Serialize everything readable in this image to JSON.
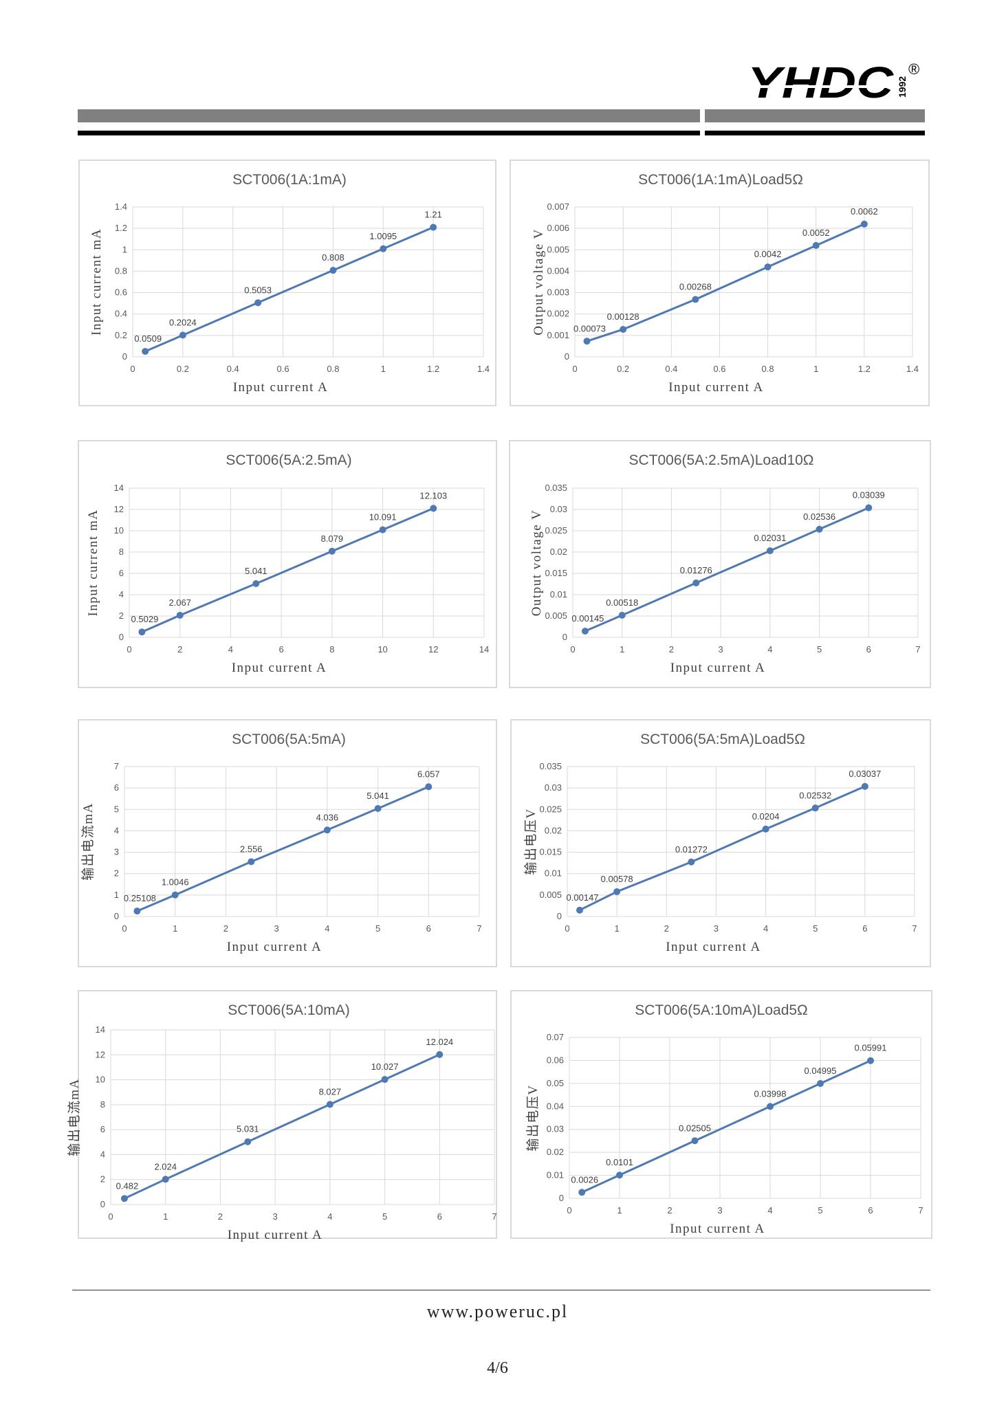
{
  "header": {
    "brand": "YHDC",
    "year": "1992",
    "registered": "®"
  },
  "footer": {
    "url": "www.poweruc.pl",
    "page": "4/6"
  },
  "colors": {
    "series": "#4f79b3",
    "grid": "#d9d9d9",
    "rule": "#808080"
  },
  "chart_data": [
    {
      "type": "line",
      "title": "SCT006(1A:1mA)",
      "xlabel": "Input current A",
      "ylabel": "Input current mA",
      "xlim": [
        0,
        1.4
      ],
      "xticks": [
        "0",
        "0.2",
        "0.4",
        "0.6",
        "0.8",
        "1",
        "1.2",
        "1.4"
      ],
      "ylim": [
        0,
        1.4
      ],
      "yticks": [
        "0",
        "0.2",
        "0.4",
        "0.6",
        "0.8",
        "1",
        "1.2",
        "1.4"
      ],
      "x": [
        0.05,
        0.2,
        0.5,
        0.8,
        1.0,
        1.2
      ],
      "y": [
        0.0509,
        0.2024,
        0.5053,
        0.808,
        1.0095,
        1.21
      ],
      "labels": [
        "0.0509",
        "0.2024",
        "0.5053",
        "0.808",
        "1.0095",
        "1.21"
      ],
      "grid": true
    },
    {
      "type": "line",
      "title": "SCT006(1A:1mA)Load5Ω",
      "xlabel": "Input current A",
      "ylabel": "Output voltage V",
      "xlim": [
        0,
        1.4
      ],
      "xticks": [
        "0",
        "0.2",
        "0.4",
        "0.6",
        "0.8",
        "1",
        "1.2",
        "1.4"
      ],
      "ylim": [
        0,
        0.007
      ],
      "yticks": [
        "0",
        "0.001",
        "0.002",
        "0.003",
        "0.004",
        "0.005",
        "0.006",
        "0.007"
      ],
      "x": [
        0.05,
        0.2,
        0.5,
        0.8,
        1.0,
        1.2
      ],
      "y": [
        0.00073,
        0.00128,
        0.00268,
        0.0042,
        0.0052,
        0.0062
      ],
      "labels": [
        "0.00073",
        "0.00128",
        "0.00268",
        "0.0042",
        "0.0052",
        "0.0062"
      ],
      "grid": true
    },
    {
      "type": "line",
      "title": "SCT006(5A:2.5mA)",
      "xlabel": "Input current A",
      "ylabel": "Input current mA",
      "xlim": [
        0,
        14
      ],
      "xticks": [
        "0",
        "2",
        "4",
        "6",
        "8",
        "10",
        "12",
        "14"
      ],
      "ylim": [
        0,
        14
      ],
      "yticks": [
        "0",
        "2",
        "4",
        "6",
        "8",
        "10",
        "12",
        "14"
      ],
      "x": [
        0.5,
        2,
        5,
        8,
        10,
        12
      ],
      "y": [
        0.5029,
        2.067,
        5.041,
        8.079,
        10.091,
        12.103
      ],
      "labels": [
        "0.5029",
        "2.067",
        "5.041",
        "8.079",
        "10.091",
        "12.103"
      ],
      "grid": true
    },
    {
      "type": "line",
      "title": "SCT006(5A:2.5mA)Load10Ω",
      "xlabel": "Input current A",
      "ylabel": "Output voltage V",
      "xlim": [
        0,
        7
      ],
      "xticks": [
        "0",
        "1",
        "2",
        "3",
        "4",
        "5",
        "6",
        "7"
      ],
      "ylim": [
        0,
        0.035
      ],
      "yticks": [
        "0",
        "0.005",
        "0.01",
        "0.015",
        "0.02",
        "0.025",
        "0.03",
        "0.035"
      ],
      "x": [
        0.25,
        1,
        2.5,
        4,
        5,
        6
      ],
      "y": [
        0.00145,
        0.00518,
        0.01276,
        0.02031,
        0.02536,
        0.03039
      ],
      "labels": [
        "0.00145",
        "0.00518",
        "0.01276",
        "0.02031",
        "0.02536",
        "0.03039"
      ],
      "grid": true
    },
    {
      "type": "line",
      "title": "SCT006(5A:5mA)",
      "xlabel": "Input current A",
      "ylabel": "输出电流mA",
      "xlim": [
        0,
        7
      ],
      "xticks": [
        "0",
        "1",
        "2",
        "3",
        "4",
        "5",
        "6",
        "7"
      ],
      "ylim": [
        0,
        7
      ],
      "yticks": [
        "0",
        "1",
        "2",
        "3",
        "4",
        "5",
        "6",
        "7"
      ],
      "x": [
        0.25,
        1,
        2.5,
        4,
        5,
        6
      ],
      "y": [
        0.25108,
        1.0046,
        2.556,
        4.036,
        5.041,
        6.057
      ],
      "labels": [
        "0.25108",
        "1.0046",
        "2.556",
        "4.036",
        "5.041",
        "6.057"
      ],
      "grid": true
    },
    {
      "type": "line",
      "title": "SCT006(5A:5mA)Load5Ω",
      "xlabel": "Input current A",
      "ylabel": "输出电压V",
      "xlim": [
        0,
        7
      ],
      "xticks": [
        "0",
        "1",
        "2",
        "3",
        "4",
        "5",
        "6",
        "7"
      ],
      "ylim": [
        0,
        0.035
      ],
      "yticks": [
        "0",
        "0.005",
        "0.01",
        "0.015",
        "0.02",
        "0.025",
        "0.03",
        "0.035"
      ],
      "x": [
        0.25,
        1,
        2.5,
        4,
        5,
        6
      ],
      "y": [
        0.00147,
        0.00578,
        0.01272,
        0.0204,
        0.02532,
        0.03037
      ],
      "labels": [
        "0.00147",
        "0.00578",
        "0.01272",
        "0.0204",
        "0.02532",
        "0.03037"
      ],
      "grid": true
    },
    {
      "type": "line",
      "title": "SCT006(5A:10mA)",
      "xlabel": "Input current A",
      "ylabel": "输出电流mA",
      "xlim": [
        0,
        7
      ],
      "xticks": [
        "0",
        "1",
        "2",
        "3",
        "4",
        "5",
        "6",
        "7"
      ],
      "ylim": [
        0,
        14
      ],
      "yticks": [
        "0",
        "2",
        "4",
        "6",
        "8",
        "10",
        "12",
        "14"
      ],
      "x": [
        0.25,
        1,
        2.5,
        4,
        5,
        6
      ],
      "y": [
        0.482,
        2.024,
        5.031,
        8.027,
        10.027,
        12.024
      ],
      "labels": [
        "0.482",
        "2.024",
        "5.031",
        "8.027",
        "10.027",
        "12.024"
      ],
      "grid": true
    },
    {
      "type": "line",
      "title": "SCT006(5A:10mA)Load5Ω",
      "xlabel": "Input current A",
      "ylabel": "输出电压V",
      "xlim": [
        0,
        7
      ],
      "xticks": [
        "0",
        "1",
        "2",
        "3",
        "4",
        "5",
        "6",
        "7"
      ],
      "ylim": [
        0,
        0.07
      ],
      "yticks": [
        "0",
        "0.01",
        "0.02",
        "0.03",
        "0.04",
        "0.05",
        "0.06",
        "0.07"
      ],
      "x": [
        0.25,
        1,
        2.5,
        4,
        5,
        6
      ],
      "y": [
        0.0026,
        0.0101,
        0.02505,
        0.03998,
        0.04995,
        0.05991
      ],
      "labels": [
        "0.0026",
        "0.0101",
        "0.02505",
        "0.03998",
        "0.04995",
        "0.05991"
      ],
      "grid": true
    }
  ]
}
